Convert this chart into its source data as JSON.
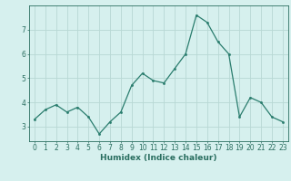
{
  "x": [
    0,
    1,
    2,
    3,
    4,
    5,
    6,
    7,
    8,
    9,
    10,
    11,
    12,
    13,
    14,
    15,
    16,
    17,
    18,
    19,
    20,
    21,
    22,
    23
  ],
  "y": [
    3.3,
    3.7,
    3.9,
    3.6,
    3.8,
    3.4,
    2.7,
    3.2,
    3.6,
    4.7,
    5.2,
    4.9,
    4.8,
    5.4,
    6.0,
    7.6,
    7.3,
    6.5,
    6.0,
    3.4,
    4.2,
    4.0,
    3.4,
    3.2
  ],
  "xlabel": "Humidex (Indice chaleur)",
  "line_color": "#2a7d6e",
  "marker_color": "#2a7d6e",
  "bg_color": "#d6f0ee",
  "grid_color": "#b8d8d4",
  "axis_color": "#2a6e60",
  "ylim": [
    2.4,
    8.0
  ],
  "xlim": [
    -0.5,
    23.5
  ],
  "yticks": [
    3,
    4,
    5,
    6,
    7
  ],
  "xticks": [
    0,
    1,
    2,
    3,
    4,
    5,
    6,
    7,
    8,
    9,
    10,
    11,
    12,
    13,
    14,
    15,
    16,
    17,
    18,
    19,
    20,
    21,
    22,
    23
  ],
  "xlabel_fontsize": 6.5,
  "tick_fontsize": 5.5
}
